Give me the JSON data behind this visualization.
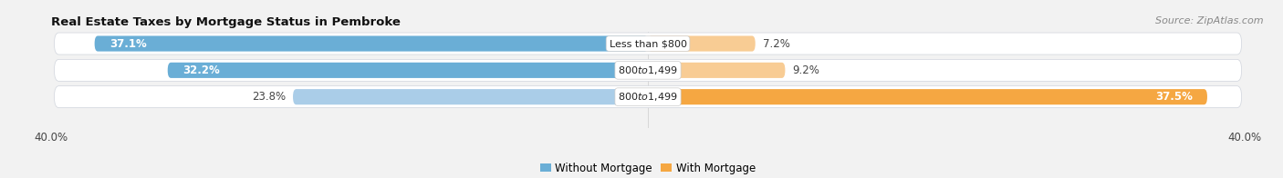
{
  "title": "Real Estate Taxes by Mortgage Status in Pembroke",
  "source": "Source: ZipAtlas.com",
  "rows": [
    {
      "label": "Less than $800",
      "without_mortgage": 37.1,
      "with_mortgage": 7.2
    },
    {
      "label": "$800 to $1,499",
      "without_mortgage": 32.2,
      "with_mortgage": 9.2
    },
    {
      "label": "$800 to $1,499",
      "without_mortgage": 23.8,
      "with_mortgage": 37.5
    }
  ],
  "x_min": -40.0,
  "x_max": 40.0,
  "x_tick_labels": [
    "40.0%",
    "40.0%"
  ],
  "color_without": "#6aaed6",
  "color_without_light": "#aacde8",
  "color_with": "#f5a742",
  "color_with_light": "#f8cc94",
  "color_bg_row": "#e4e8f0",
  "color_bg_fig": "#f2f2f2",
  "legend_without": "Without Mortgage",
  "legend_with": "With Mortgage",
  "title_fontsize": 9.5,
  "label_fontsize": 8.5,
  "tick_fontsize": 8.5,
  "source_fontsize": 8
}
